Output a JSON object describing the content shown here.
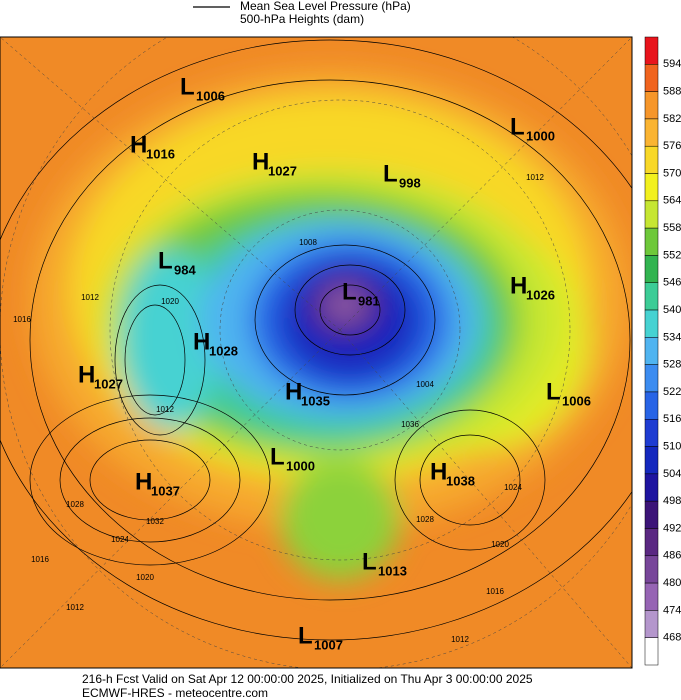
{
  "legend": {
    "items": [
      "Mean Sea Level Pressure (hPa)",
      "500-hPa Heights (dam)"
    ]
  },
  "colorbar": {
    "ticks": [
      594,
      588,
      582,
      576,
      570,
      564,
      558,
      552,
      546,
      540,
      534,
      528,
      522,
      516,
      510,
      504,
      498,
      492,
      486,
      480,
      474,
      468
    ],
    "colors": [
      "#e8141c",
      "#f0641e",
      "#f6962a",
      "#fab432",
      "#f8d828",
      "#f2f01e",
      "#c6e632",
      "#6ec83a",
      "#32b450",
      "#3ccc96",
      "#46d2d2",
      "#50b4f0",
      "#3c8cf0",
      "#2864e6",
      "#1e3cd2",
      "#1428be",
      "#1e14a0",
      "#3c1478",
      "#5a2882",
      "#78469a",
      "#9664b4",
      "#b496cc",
      "#ffffff"
    ]
  },
  "centers": [
    {
      "type": "L",
      "value": 1006
    },
    {
      "type": "H",
      "value": 1016
    },
    {
      "type": "H",
      "value": 1027
    },
    {
      "type": "L",
      "value": 998
    },
    {
      "type": "L",
      "value": 1000
    },
    {
      "type": "L",
      "value": 984
    },
    {
      "type": "L",
      "value": 981
    },
    {
      "type": "H",
      "value": 1026
    },
    {
      "type": "H",
      "value": 1028
    },
    {
      "type": "H",
      "value": 1027
    },
    {
      "type": "H",
      "value": 1035
    },
    {
      "type": "L",
      "value": 1006
    },
    {
      "type": "L",
      "value": 1000
    },
    {
      "type": "H",
      "value": 1038
    },
    {
      "type": "H",
      "value": 1037
    },
    {
      "type": "L",
      "value": 1013
    },
    {
      "type": "L",
      "value": 1007
    }
  ],
  "contour_labels": [
    1012,
    1008,
    1012,
    1016,
    1020,
    1012,
    1028,
    1032,
    1024,
    1016,
    1020,
    1012,
    1028,
    1020,
    1024,
    1016,
    1012,
    1004,
    1036
  ],
  "footer": {
    "line1": "216-h Fcst Valid on Sat Apr 12 00:00:00 2025, Initialized on Thu Apr  3 00:00:00 2025",
    "line2": "ECMWF-HRES  - meteocentre.com"
  }
}
